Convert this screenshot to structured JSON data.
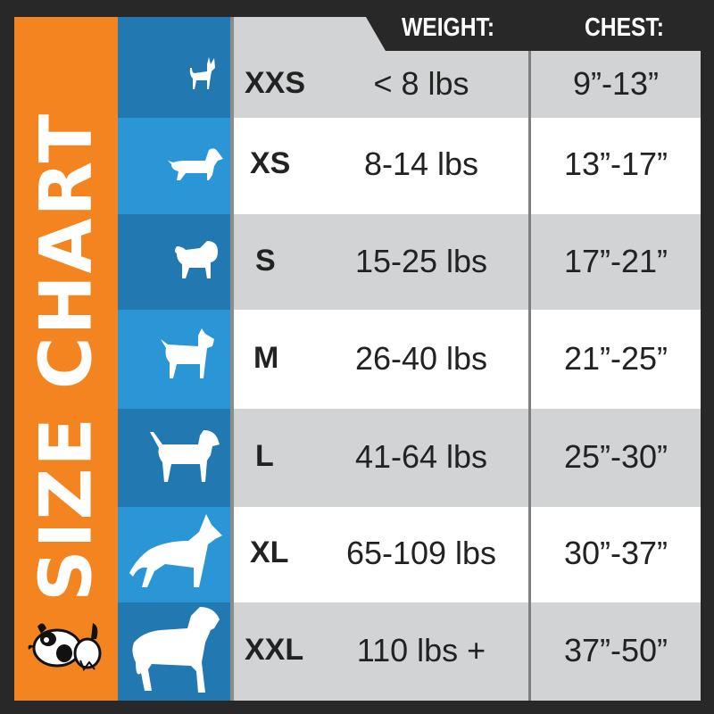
{
  "title": "SIZE CHART",
  "headers": {
    "weight": "WEIGHT:",
    "chest": "CHEST:"
  },
  "colors": {
    "background": "#282828",
    "orange": "#f4841f",
    "blue_dark": "#2278b0",
    "blue_light": "#2a96d6",
    "row_gray": "#d1d3d4",
    "row_white": "#ffffff"
  },
  "rows": [
    {
      "size": "XXS",
      "weight": "< 8 lbs",
      "chest": "9”-13”",
      "icon": "chihuahua-icon"
    },
    {
      "size": "XS",
      "weight": "8-14 lbs",
      "chest": "13”-17”",
      "icon": "dachshund-icon"
    },
    {
      "size": "S",
      "weight": "15-25 lbs",
      "chest": "17”-21”",
      "icon": "pug-icon"
    },
    {
      "size": "M",
      "weight": "26-40 lbs",
      "chest": "21”-25”",
      "icon": "schnauzer-icon"
    },
    {
      "size": "L",
      "weight": "41-64 lbs",
      "chest": "25”-30”",
      "icon": "beagle-icon"
    },
    {
      "size": "XL",
      "weight": "65-109 lbs",
      "chest": "30”-37”",
      "icon": "shepherd-icon"
    },
    {
      "size": "XXL",
      "weight": "110 lbs +",
      "chest": "37”-50”",
      "icon": "mastiff-icon"
    }
  ]
}
